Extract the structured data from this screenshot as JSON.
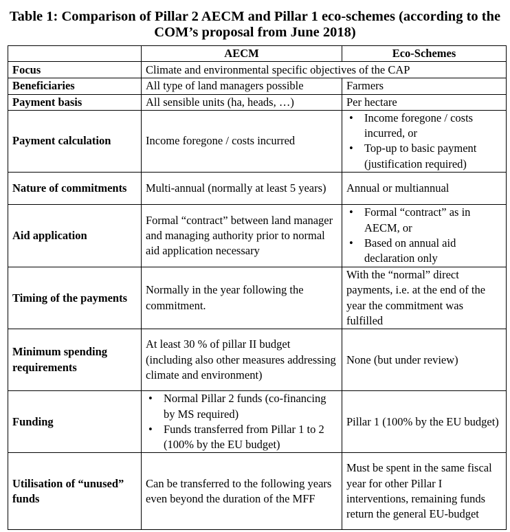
{
  "title": "Table 1: Comparison of Pillar 2 AECM and Pillar 1 eco-schemes (according to the COM’s proposal from June 2018)",
  "columns": [
    "",
    "AECM",
    "Eco-Schemes"
  ],
  "rows": [
    {
      "label": "Focus",
      "merged": "Climate and environmental specific objectives of the CAP"
    },
    {
      "label": "Beneficiaries",
      "aecm": "All type of land managers possible",
      "eco": "Farmers"
    },
    {
      "label": "Payment basis",
      "aecm": "All sensible units (ha, heads, …)",
      "eco": "Per hectare"
    },
    {
      "label": "Payment calculation",
      "aecm": "Income foregone / costs incurred",
      "eco_bullets": [
        "Income foregone / costs incurred, or",
        "Top-up to basic payment (justification required)"
      ]
    },
    {
      "label": "Nature of commitments",
      "aecm": "Multi-annual (normally at least 5 years)",
      "eco": "Annual or multiannual"
    },
    {
      "label": "Aid application",
      "aecm": "Formal “contract” between land manager and managing authority prior to normal aid application necessary",
      "eco_bullets": [
        "Formal “contract” as in AECM, or",
        "Based on annual aid declaration only"
      ]
    },
    {
      "label": "Timing of the payments",
      "aecm": "Normally in the year following the commitment.",
      "eco": "With the “normal” direct payments, i.e. at the end of the year the commitment was fulfilled"
    },
    {
      "label": "Minimum spending requirements",
      "aecm": "At least 30 % of pillar II budget (including also other measures addressing climate and environment)",
      "eco": "None (but under review)"
    },
    {
      "label": "Funding",
      "aecm_bullets": [
        "Normal Pillar 2 funds (co-financing by MS required)",
        "Funds transferred from Pillar 1 to 2 (100% by the EU budget)"
      ],
      "eco": "Pillar 1 (100% by the EU budget)"
    },
    {
      "label": "Utilisation of “unused” funds",
      "aecm": "Can be transferred to the following years even beyond the duration of the MFF",
      "eco": "Must be spent in the same fiscal year for other Pillar I interventions, remaining funds return the general EU-budget"
    }
  ]
}
